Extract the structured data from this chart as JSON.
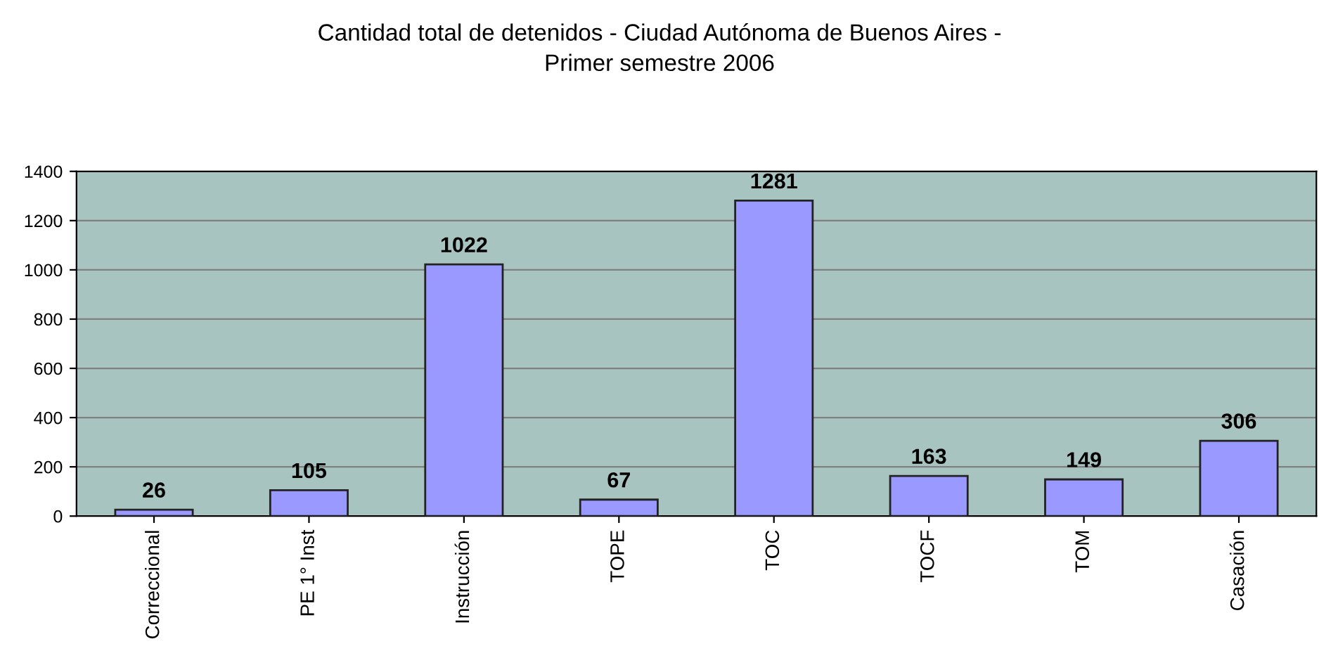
{
  "chart_data": {
    "type": "bar",
    "title": "Cantidad total de detenidos - Ciudad Autónoma de Buenos Aires - Primer semestre 2006",
    "categories": [
      "Correccional",
      "PE 1° Inst",
      "Instrucción",
      "TOPE",
      "TOC",
      "TOCF",
      "TOM",
      "Casación"
    ],
    "values": [
      26,
      105,
      1022,
      67,
      1281,
      163,
      149,
      306
    ],
    "color": "#9999ff",
    "ylim": [
      0,
      1400
    ],
    "yticks": [
      0,
      200,
      400,
      600,
      800,
      1000,
      1200,
      1400
    ],
    "grid": "y",
    "data_labels": true
  }
}
